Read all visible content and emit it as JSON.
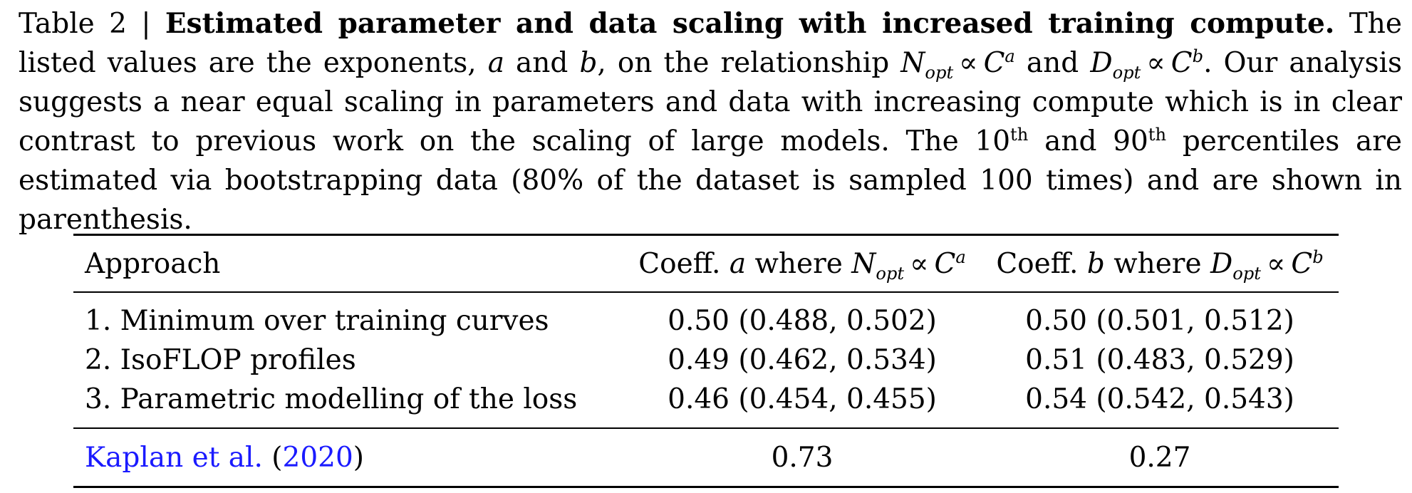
{
  "caption": {
    "label": "Table 2 |",
    "title": "Estimated parameter and data scaling with increased training compute.",
    "text_1": "The listed values are the exponents,",
    "var_a": "a",
    "text_and": "and",
    "var_b": "b",
    "text_2": ", on the relationship",
    "N": "N",
    "opt": "opt",
    "propto": "∝",
    "C": "C",
    "D": "D",
    "text_3": ". Our analysis suggests a near equal scaling in parameters and data with increasing compute which is in clear contrast to previous work on the scaling of large models. The 10",
    "th": "th",
    "text_4": "and 90",
    "text_5": "percentiles are estimated via bootstrapping data (80% of the dataset is sampled 100 times) and are shown in parenthesis."
  },
  "table": {
    "headers": {
      "approach": "Approach",
      "coeff_a_prefix": "Coeff.",
      "coeff_a_where": "where",
      "coeff_b_prefix": "Coeff.",
      "coeff_b_where": "where"
    },
    "rows": [
      {
        "approach": "1. Minimum over training curves",
        "a": "0.50 (0.488, 0.502)",
        "b": "0.50 (0.501, 0.512)"
      },
      {
        "approach": "2. IsoFLOP profiles",
        "a": "0.49 (0.462, 0.534)",
        "b": "0.51 (0.483, 0.529)"
      },
      {
        "approach": "3. Parametric modelling of the loss",
        "a": "0.46 (0.454, 0.455)",
        "b": "0.54 (0.542, 0.543)"
      }
    ],
    "reference": {
      "author": "Kaplan et al.",
      "open_paren": "(",
      "year": "2020",
      "close_paren": ")",
      "a": "0.73",
      "b": "0.27"
    }
  }
}
